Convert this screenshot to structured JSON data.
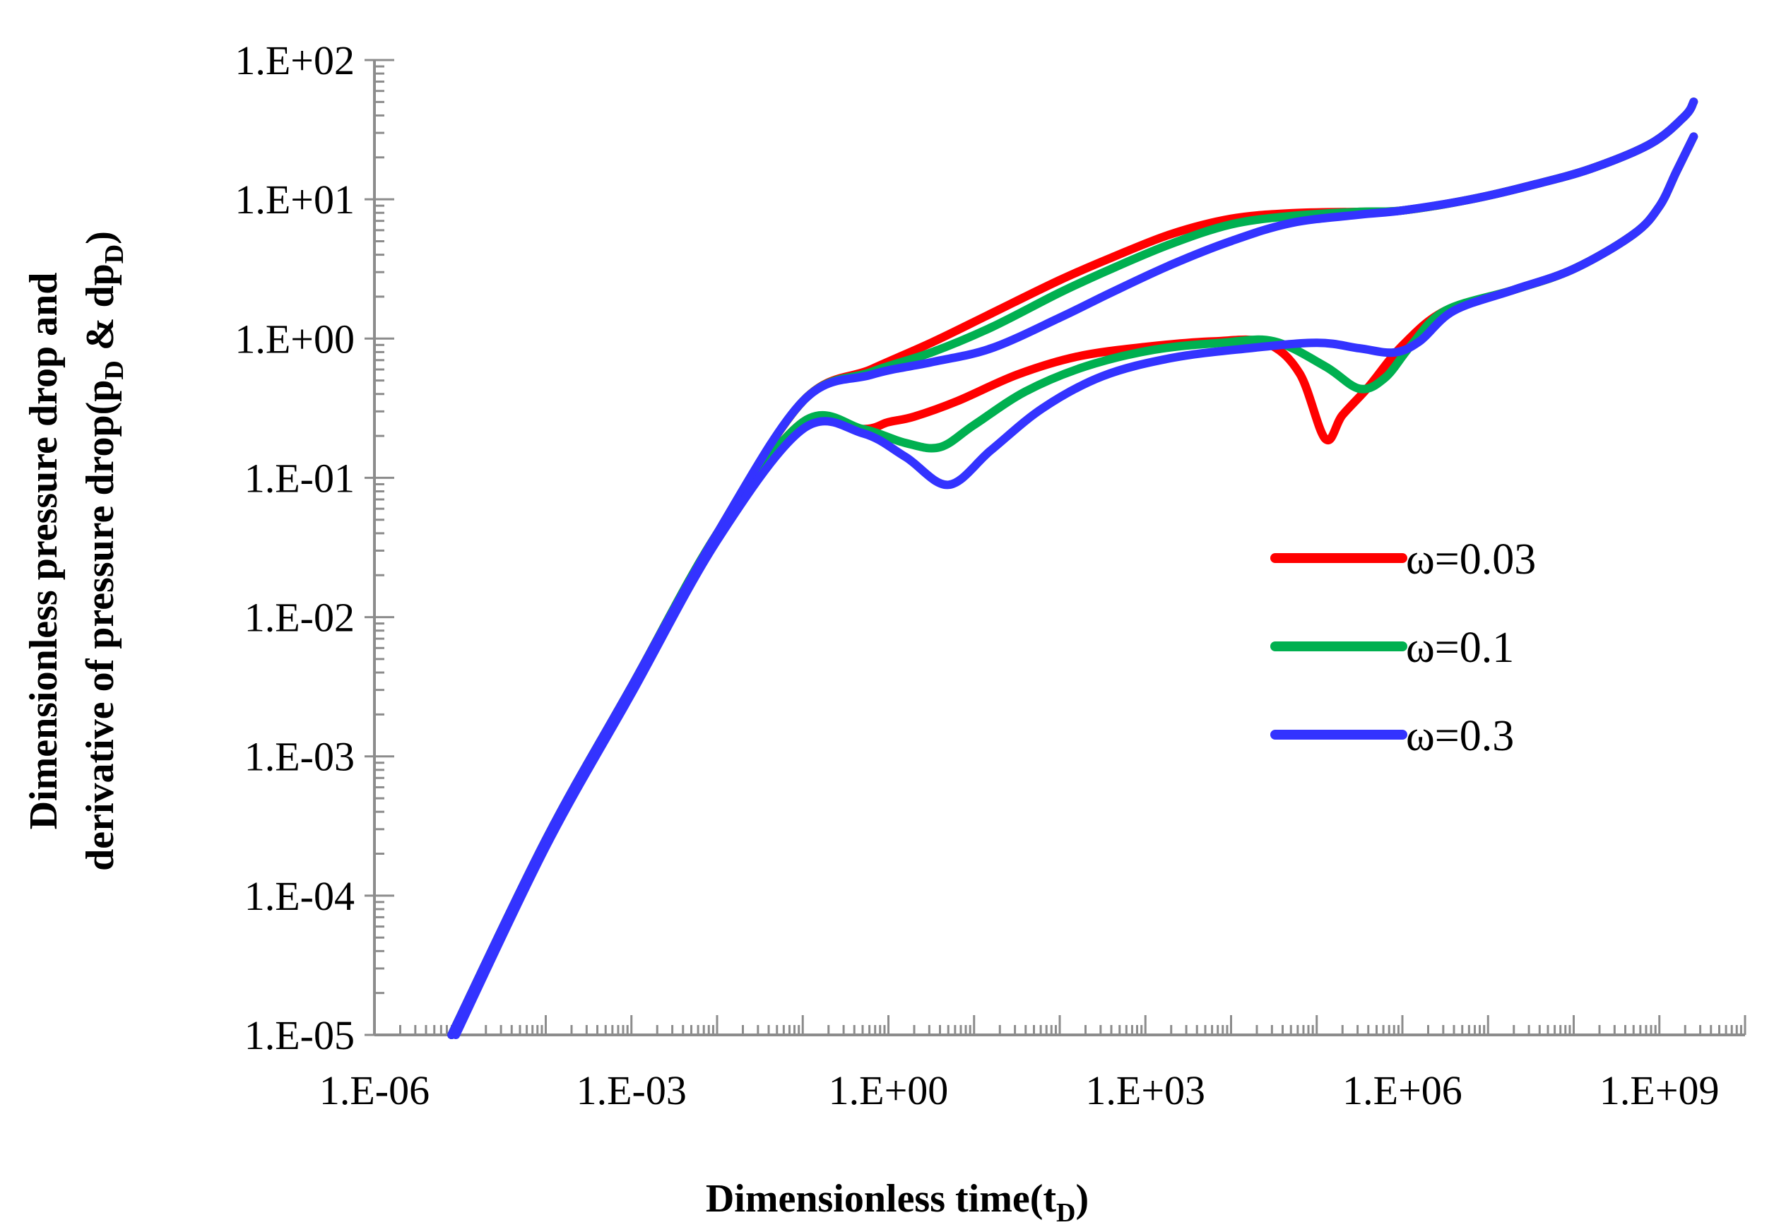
{
  "chart_data": {
    "type": "line",
    "title": "",
    "xlabel": "Dimensionless time(t",
    "xlabel_sub": "D",
    "xlabel_end": ")",
    "ylabel_line1": "Dimensionless pressure drop and",
    "ylabel_line2_a": "derivative of pressure drop(p",
    "ylabel_line2_sub1": "D",
    "ylabel_line2_b": " & dp",
    "ylabel_line2_sub2": "D",
    "ylabel_line2_end": ")",
    "x_scale": "log",
    "y_scale": "log",
    "xlim_log10": [
      -6,
      10
    ],
    "ylim_log10": [
      -5,
      2
    ],
    "x_tick_labels": [
      "1.E-06",
      "1.E-03",
      "1.E+00",
      "1.E+03",
      "1.E+06",
      "1.E+09"
    ],
    "x_tick_exponents": [
      -6,
      -3,
      0,
      3,
      6,
      9
    ],
    "y_tick_labels": [
      "1.E-05",
      "1.E-04",
      "1.E-03",
      "1.E-02",
      "1.E-01",
      "1.E+00",
      "1.E+01",
      "1.E+02"
    ],
    "y_tick_exponents": [
      -5,
      -4,
      -3,
      -2,
      -1,
      0,
      1,
      2
    ],
    "grid": false,
    "legend_position": "right-middle",
    "series": [
      {
        "name": "ω=0.03",
        "color": "#ff0000",
        "pressure_log": [
          [
            -5.1,
            -5
          ],
          [
            -4,
            -3.6
          ],
          [
            -3,
            -2.5
          ],
          [
            -2,
            -1.4
          ],
          [
            -1,
            -0.45
          ],
          [
            -0.2,
            -0.22
          ],
          [
            0.5,
            -0.03
          ],
          [
            1.2,
            0.18
          ],
          [
            2,
            0.42
          ],
          [
            2.6,
            0.58
          ],
          [
            3.3,
            0.75
          ],
          [
            4,
            0.86
          ],
          [
            4.7,
            0.9
          ],
          [
            5.5,
            0.91
          ],
          [
            6,
            0.92
          ],
          [
            6.8,
            1.0
          ],
          [
            7.5,
            1.1
          ],
          [
            8.2,
            1.22
          ],
          [
            8.9,
            1.4
          ],
          [
            9.3,
            1.6
          ],
          [
            9.4,
            1.7
          ]
        ],
        "derivative_log": [
          [
            -5.1,
            -5
          ],
          [
            -4,
            -3.6
          ],
          [
            -3,
            -2.5
          ],
          [
            -2,
            -1.4
          ],
          [
            -1,
            -0.6
          ],
          [
            -0.3,
            -0.65
          ],
          [
            0,
            -0.6
          ],
          [
            0.3,
            -0.56
          ],
          [
            0.8,
            -0.45
          ],
          [
            1.5,
            -0.26
          ],
          [
            2.2,
            -0.13
          ],
          [
            3,
            -0.06
          ],
          [
            3.8,
            -0.02
          ],
          [
            4.4,
            -0.03
          ],
          [
            4.8,
            -0.25
          ],
          [
            5.1,
            -0.72
          ],
          [
            5.3,
            -0.55
          ],
          [
            5.6,
            -0.35
          ],
          [
            6,
            -0.05
          ],
          [
            6.5,
            0.2
          ],
          [
            7.3,
            0.35
          ],
          [
            8,
            0.5
          ],
          [
            8.7,
            0.75
          ],
          [
            9,
            0.95
          ],
          [
            9.2,
            1.2
          ],
          [
            9.4,
            1.45
          ]
        ]
      },
      {
        "name": "ω=0.1",
        "color": "#00b050",
        "pressure_log": [
          [
            -5.1,
            -5
          ],
          [
            -4,
            -3.6
          ],
          [
            -3,
            -2.5
          ],
          [
            -2,
            -1.4
          ],
          [
            -1,
            -0.45
          ],
          [
            -0.2,
            -0.24
          ],
          [
            0.5,
            -0.1
          ],
          [
            1.2,
            0.08
          ],
          [
            2,
            0.33
          ],
          [
            2.6,
            0.5
          ],
          [
            3.3,
            0.68
          ],
          [
            4,
            0.82
          ],
          [
            4.7,
            0.88
          ],
          [
            5.5,
            0.91
          ],
          [
            6,
            0.92
          ],
          [
            6.8,
            1.0
          ],
          [
            7.5,
            1.1
          ],
          [
            8.2,
            1.22
          ],
          [
            8.9,
            1.4
          ],
          [
            9.3,
            1.6
          ],
          [
            9.4,
            1.7
          ]
        ],
        "derivative_log": [
          [
            -5.1,
            -5
          ],
          [
            -4,
            -3.6
          ],
          [
            -3,
            -2.5
          ],
          [
            -2,
            -1.4
          ],
          [
            -1,
            -0.6
          ],
          [
            -0.3,
            -0.65
          ],
          [
            0.2,
            -0.75
          ],
          [
            0.6,
            -0.78
          ],
          [
            1,
            -0.62
          ],
          [
            1.6,
            -0.38
          ],
          [
            2.3,
            -0.2
          ],
          [
            3.1,
            -0.08
          ],
          [
            3.9,
            -0.03
          ],
          [
            4.5,
            -0.02
          ],
          [
            5.1,
            -0.2
          ],
          [
            5.5,
            -0.36
          ],
          [
            5.8,
            -0.28
          ],
          [
            6.1,
            -0.05
          ],
          [
            6.5,
            0.2
          ],
          [
            7.3,
            0.35
          ],
          [
            8,
            0.5
          ],
          [
            8.7,
            0.75
          ],
          [
            9,
            0.95
          ],
          [
            9.2,
            1.2
          ],
          [
            9.4,
            1.45
          ]
        ]
      },
      {
        "name": "ω=0.3",
        "color": "#3333ff",
        "pressure_log": [
          [
            -5.1,
            -5
          ],
          [
            -4,
            -3.6
          ],
          [
            -3,
            -2.5
          ],
          [
            -2,
            -1.4
          ],
          [
            -1,
            -0.45
          ],
          [
            -0.2,
            -0.26
          ],
          [
            0.5,
            -0.17
          ],
          [
            1.2,
            -0.07
          ],
          [
            2,
            0.15
          ],
          [
            2.6,
            0.33
          ],
          [
            3.3,
            0.53
          ],
          [
            4,
            0.7
          ],
          [
            4.7,
            0.83
          ],
          [
            5.5,
            0.89
          ],
          [
            6,
            0.92
          ],
          [
            6.8,
            1.0
          ],
          [
            7.5,
            1.1
          ],
          [
            8.2,
            1.22
          ],
          [
            8.9,
            1.4
          ],
          [
            9.3,
            1.6
          ],
          [
            9.4,
            1.7
          ]
        ],
        "derivative_log": [
          [
            -5.05,
            -5
          ],
          [
            -4,
            -3.65
          ],
          [
            -3,
            -2.55
          ],
          [
            -2,
            -1.45
          ],
          [
            -1,
            -0.65
          ],
          [
            -0.3,
            -0.68
          ],
          [
            0.2,
            -0.85
          ],
          [
            0.7,
            -1.05
          ],
          [
            1.2,
            -0.8
          ],
          [
            1.8,
            -0.5
          ],
          [
            2.5,
            -0.27
          ],
          [
            3.3,
            -0.14
          ],
          [
            4.2,
            -0.07
          ],
          [
            5,
            -0.03
          ],
          [
            5.5,
            -0.07
          ],
          [
            5.9,
            -0.1
          ],
          [
            6.2,
            -0.02
          ],
          [
            6.6,
            0.2
          ],
          [
            7.3,
            0.35
          ],
          [
            8,
            0.5
          ],
          [
            8.7,
            0.75
          ],
          [
            9,
            0.95
          ],
          [
            9.2,
            1.2
          ],
          [
            9.4,
            1.45
          ]
        ]
      }
    ]
  }
}
